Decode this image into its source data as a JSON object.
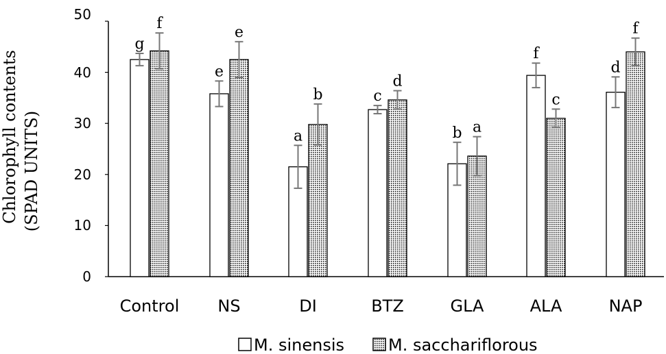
{
  "chart_data": {
    "type": "bar",
    "title": "",
    "xlabel": "",
    "ylabel_line1": "Chlorophyll contents",
    "ylabel_line2": "(SPAD UNITS)",
    "ylim": [
      0,
      50
    ],
    "yticks": [
      "0",
      "10",
      "20",
      "30",
      "40",
      "50"
    ],
    "categories": [
      "Control",
      "NS",
      "DI",
      "BTZ",
      "GLA",
      "ALA",
      "NAP"
    ],
    "legend_position": "bottom-center",
    "series": [
      {
        "name": "M. sinensis",
        "fill": "#ffffff",
        "values": [
          42.5,
          35.8,
          21.5,
          32.7,
          22.1,
          39.4,
          36.1
        ],
        "errors": [
          1.2,
          2.5,
          4.2,
          0.8,
          4.2,
          2.4,
          3.0
        ],
        "letters": [
          "g",
          "e",
          "a",
          "c",
          "b",
          "f",
          "d"
        ]
      },
      {
        "name": "M. sacchariflorous",
        "fill": "dotted",
        "values": [
          44.2,
          42.5,
          29.8,
          34.6,
          23.6,
          31.0,
          44.0
        ],
        "errors": [
          3.5,
          3.5,
          4.0,
          1.8,
          3.8,
          1.8,
          2.7
        ],
        "letters": [
          "f",
          "e",
          "b",
          "d",
          "a",
          "c",
          "f"
        ]
      }
    ]
  }
}
